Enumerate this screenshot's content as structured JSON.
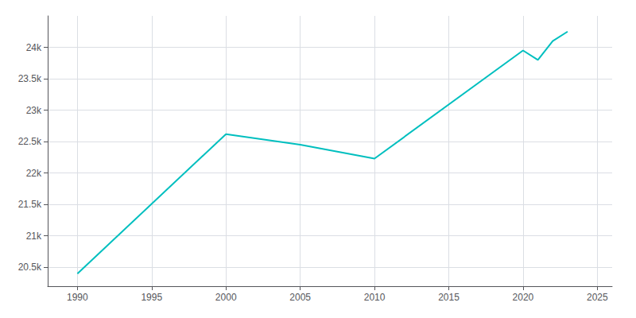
{
  "chart_data": {
    "type": "line",
    "x": [
      1990,
      2000,
      2005,
      2010,
      2020,
      2021,
      2022,
      2023
    ],
    "values": [
      20400,
      22620,
      22450,
      22230,
      23950,
      23800,
      24100,
      24250
    ],
    "color": "#00BFBF",
    "xlim": [
      1988,
      2026
    ],
    "ylim": [
      20200,
      24500
    ],
    "xticks": [
      1990,
      1995,
      2000,
      2005,
      2010,
      2015,
      2020,
      2025
    ],
    "yticks": [
      {
        "value": 20500,
        "label": "20.5k"
      },
      {
        "value": 21000,
        "label": "21k"
      },
      {
        "value": 21500,
        "label": "21.5k"
      },
      {
        "value": 22000,
        "label": "22k"
      },
      {
        "value": 22500,
        "label": "22.5k"
      },
      {
        "value": 23000,
        "label": "23k"
      },
      {
        "value": 23500,
        "label": "23.5k"
      },
      {
        "value": 24000,
        "label": "24k"
      }
    ],
    "grid": true
  }
}
